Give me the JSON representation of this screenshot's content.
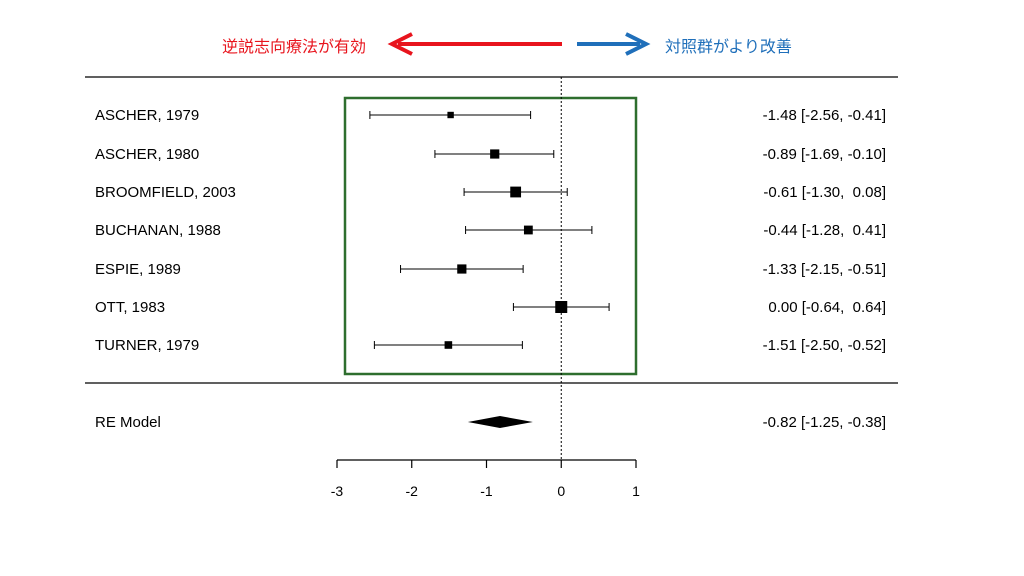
{
  "header": {
    "left_text": "逆説志向療法が有効",
    "right_text": "対照群がより改善",
    "left_color": "#e8141d",
    "right_color": "#1f6fba"
  },
  "box_color": "#2e6e2e",
  "chart_data": {
    "type": "forest",
    "xlim": [
      -3,
      1
    ],
    "xticks": [
      -3,
      -2,
      -1,
      0,
      1
    ],
    "xtick_labels": [
      "-3",
      "-2",
      "-1",
      "0",
      "1"
    ],
    "reference_line": 0,
    "studies": [
      {
        "label": "ASCHER, 1979",
        "est": -1.48,
        "lo": -2.56,
        "hi": -0.41,
        "weight": 0.3,
        "ci_text": "-1.48 [-2.56, -0.41]"
      },
      {
        "label": "ASCHER, 1980",
        "est": -0.89,
        "lo": -1.69,
        "hi": -0.1,
        "weight": 0.65,
        "ci_text": "-0.89 [-1.69, -0.10]"
      },
      {
        "label": "BROOMFIELD, 2003",
        "est": -0.61,
        "lo": -1.3,
        "hi": 0.08,
        "weight": 0.85,
        "ci_text": "-0.61 [-1.30,  0.08]"
      },
      {
        "label": "BUCHANAN, 1988",
        "est": -0.44,
        "lo": -1.28,
        "hi": 0.41,
        "weight": 0.6,
        "ci_text": "-0.44 [-1.28,  0.41]"
      },
      {
        "label": "ESPIE, 1989",
        "est": -1.33,
        "lo": -2.15,
        "hi": -0.51,
        "weight": 0.65,
        "ci_text": "-1.33 [-2.15, -0.51]"
      },
      {
        "label": "OTT, 1983",
        "est": 0.0,
        "lo": -0.64,
        "hi": 0.64,
        "weight": 1.0,
        "ci_text": "0.00 [-0.64,  0.64]"
      },
      {
        "label": "TURNER, 1979",
        "est": -1.51,
        "lo": -2.5,
        "hi": -0.52,
        "weight": 0.45,
        "ci_text": "-1.51 [-2.50, -0.52]"
      }
    ],
    "summary": {
      "label": "RE Model",
      "est": -0.82,
      "lo": -1.25,
      "hi": -0.38,
      "ci_text": "-0.82 [-1.25, -0.38]"
    }
  }
}
